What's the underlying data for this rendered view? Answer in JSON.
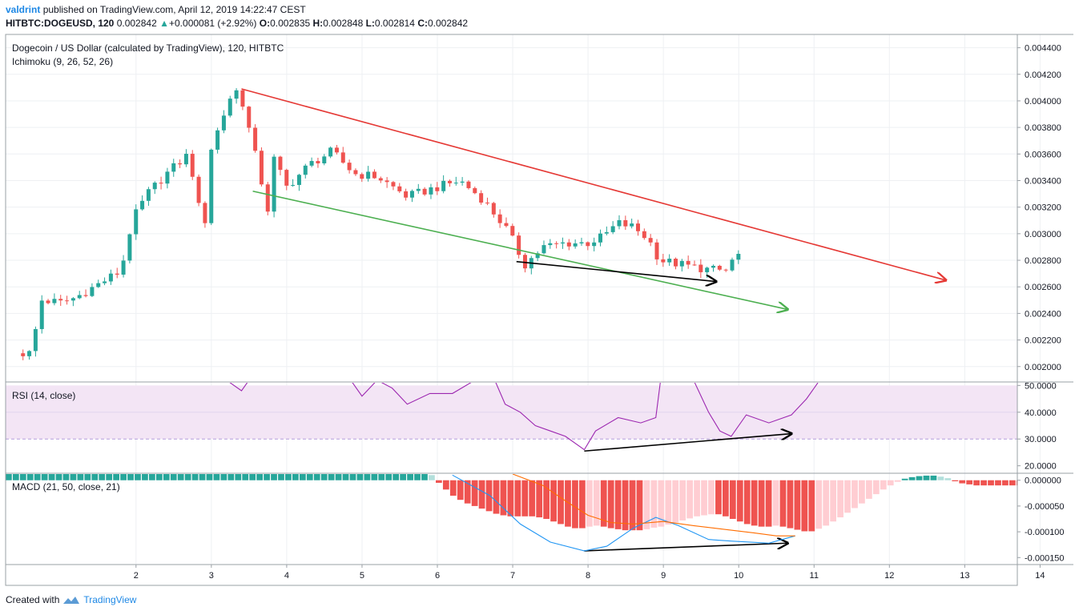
{
  "header": {
    "user": "valdrint",
    "publish_text": "published on TradingView.com, April 12, 2019 14:22:47 CEST",
    "symbol": "HITBTC:DOGEUSD, 120",
    "last": "0.002842",
    "change": "+0.000081 (+2.92%)",
    "o_label": "O:",
    "open": "0.002835",
    "h_label": "H:",
    "high": "0.002848",
    "l_label": "L:",
    "low": "0.002814",
    "c_label": "C:",
    "close": "0.002842"
  },
  "main_legend": {
    "title": "Dogecoin / US Dollar (calculated by TradingView), 120, HITBTC",
    "indicator": "Ichimoku (9, 26, 52, 26)"
  },
  "rsi_legend": "RSI (14, close)",
  "macd_legend": "MACD (21, 50, close, 21)",
  "footer": {
    "created": "Created with",
    "brand": "TradingView"
  },
  "colors": {
    "up": "#26a69a",
    "down": "#ef5350",
    "resistance": "#e53935",
    "support": "#4caf50",
    "divergence": "#000000",
    "rsi_line": "#9c27b0",
    "rsi_band": "#f3e5f5",
    "macd_line": "#2196f3",
    "signal_line": "#ff6d00",
    "hist_up_strong": "#26a69a",
    "hist_up_weak": "#b2dfdb",
    "hist_down_strong": "#ef5350",
    "hist_down_weak": "#ffcdd2"
  },
  "chart_data": {
    "type": "candlestick",
    "x_ticks": [
      "2",
      "3",
      "4",
      "5",
      "6",
      "7",
      "8",
      "9",
      "10",
      "11",
      "12",
      "13",
      "14"
    ],
    "price_axis": {
      "ticks": [
        "0.004400",
        "0.004200",
        "0.004000",
        "0.003800",
        "0.003600",
        "0.003400",
        "0.003200",
        "0.003000",
        "0.002800",
        "0.002600",
        "0.002400",
        "0.002200",
        "0.002000"
      ],
      "range": [
        0.00189,
        0.0045
      ]
    },
    "price_path": [
      [
        0.5,
        0.0021
      ],
      [
        0.6,
        0.0021
      ],
      [
        0.75,
        0.0025
      ],
      [
        1.0,
        0.00248
      ],
      [
        1.2,
        0.00252
      ],
      [
        1.5,
        0.00262
      ],
      [
        1.8,
        0.00272
      ],
      [
        1.95,
        0.0031
      ],
      [
        2.15,
        0.0033
      ],
      [
        2.4,
        0.00345
      ],
      [
        2.7,
        0.0036
      ],
      [
        2.9,
        0.003
      ],
      [
        3.0,
        0.00365
      ],
      [
        3.2,
        0.00395
      ],
      [
        3.3,
        0.0041
      ],
      [
        3.4,
        0.00402
      ],
      [
        3.6,
        0.00355
      ],
      [
        3.75,
        0.00318
      ],
      [
        3.8,
        0.0036
      ],
      [
        4.0,
        0.00335
      ],
      [
        4.3,
        0.00352
      ],
      [
        4.6,
        0.00362
      ],
      [
        4.9,
        0.00345
      ],
      [
        5.2,
        0.00343
      ],
      [
        5.6,
        0.00328
      ],
      [
        6.0,
        0.00335
      ],
      [
        6.3,
        0.0034
      ],
      [
        6.6,
        0.00326
      ],
      [
        6.9,
        0.00305
      ],
      [
        7.05,
        0.0029
      ],
      [
        7.15,
        0.00276
      ],
      [
        7.4,
        0.0029
      ],
      [
        7.7,
        0.00293
      ],
      [
        8.0,
        0.00293
      ],
      [
        8.2,
        0.00298
      ],
      [
        8.4,
        0.00308
      ],
      [
        8.6,
        0.00305
      ],
      [
        8.8,
        0.00296
      ],
      [
        8.95,
        0.0028
      ],
      [
        9.3,
        0.00276
      ],
      [
        9.6,
        0.00273
      ],
      [
        9.85,
        0.00272
      ],
      [
        9.95,
        0.00284
      ]
    ],
    "resistance_line": {
      "from": [
        3.4,
        0.00409
      ],
      "to": [
        12.75,
        0.00265
      ]
    },
    "support_line": {
      "from": [
        3.55,
        0.00332
      ],
      "to": [
        10.65,
        0.00243
      ]
    },
    "price_divergence_line": {
      "from": [
        7.05,
        0.00279
      ],
      "to": [
        9.7,
        0.00264
      ]
    },
    "rsi": {
      "ticks": [
        "50.0000",
        "40.0000",
        "30.0000",
        "20.0000"
      ],
      "range": [
        17.5,
        51
      ],
      "band": [
        30,
        50
      ],
      "path": [
        [
          0.5,
          53
        ],
        [
          3.0,
          56
        ],
        [
          3.4,
          48
        ],
        [
          3.6,
          56
        ],
        [
          4.0,
          55
        ],
        [
          4.4,
          54
        ],
        [
          4.6,
          52
        ],
        [
          4.8,
          54
        ],
        [
          5.0,
          46
        ],
        [
          5.2,
          52
        ],
        [
          5.4,
          49
        ],
        [
          5.6,
          43
        ],
        [
          5.9,
          47
        ],
        [
          6.2,
          47
        ],
        [
          6.5,
          52
        ],
        [
          6.7,
          56
        ],
        [
          6.9,
          43
        ],
        [
          7.1,
          40
        ],
        [
          7.3,
          35
        ],
        [
          7.5,
          33
        ],
        [
          7.7,
          31
        ],
        [
          7.95,
          26
        ],
        [
          8.1,
          33
        ],
        [
          8.4,
          38
        ],
        [
          8.7,
          36
        ],
        [
          8.9,
          38
        ],
        [
          9.0,
          60
        ],
        [
          9.2,
          58
        ],
        [
          9.4,
          52
        ],
        [
          9.6,
          40
        ],
        [
          9.75,
          33
        ],
        [
          9.9,
          31
        ],
        [
          10.1,
          39
        ],
        [
          10.4,
          36
        ],
        [
          10.7,
          39
        ],
        [
          10.9,
          45
        ],
        [
          11.05,
          51
        ]
      ],
      "divergence_line": {
        "from": [
          7.95,
          25.5
        ],
        "to": [
          10.7,
          32
        ]
      }
    },
    "macd": {
      "ticks": [
        "0.000000",
        "-0.000050",
        "-0.000100",
        "-0.000150"
      ],
      "range": [
        -0.000162,
        1.2e-05
      ],
      "histogram": [
        2e-05,
        2e-05,
        2e-05,
        2e-05,
        2e-05,
        2e-05,
        2e-05,
        2e-05,
        2e-05,
        2e-05,
        2e-05,
        2e-05,
        2e-05,
        2e-05,
        2e-05,
        2e-05,
        2e-05,
        2e-05,
        2e-05,
        2e-05,
        2e-05,
        2e-05,
        2e-05,
        2e-05,
        2e-05,
        2e-05,
        2e-05,
        2e-05,
        2e-05,
        2e-05,
        2e-05,
        2e-05,
        2e-05,
        2e-05,
        2e-05,
        2e-05,
        2e-05,
        2e-05,
        2e-05,
        2e-05,
        2e-05,
        2e-05,
        2e-05,
        2e-05,
        2e-05,
        2e-05,
        2e-05,
        2e-05,
        2e-05,
        2e-05,
        2e-05,
        2e-05,
        2e-05,
        2e-05,
        2e-05,
        2e-05,
        2e-05,
        2e-05,
        2e-05,
        1e-05,
        -5e-06,
        -1.8e-05,
        -3e-05,
        -3.8e-05,
        -4.5e-05,
        -5e-05,
        -5.5e-05,
        -6e-05,
        -6.5e-05,
        -6.8e-05,
        -7e-05,
        -7e-05,
        -7e-05,
        -7e-05,
        -7.2e-05,
        -7.5e-05,
        -8e-05,
        -8.5e-05,
        -9e-05,
        -9.3e-05,
        -9.3e-05,
        -9e-05,
        -8.8e-05,
        -9e-05,
        -9.3e-05,
        -9.5e-05,
        -9.7e-05,
        -9.7e-05,
        -9.7e-05,
        -9.5e-05,
        -9.2e-05,
        -9e-05,
        -8.6e-05,
        -8.2e-05,
        -7.8e-05,
        -7.4e-05,
        -7e-05,
        -6.8e-05,
        -6.6e-05,
        -6.6e-05,
        -7e-05,
        -7.5e-05,
        -8e-05,
        -8.5e-05,
        -8.8e-05,
        -9e-05,
        -9e-05,
        -8.8e-05,
        -9e-05,
        -9.3e-05,
        -9.6e-05,
        -9.9e-05,
        -9.9e-05,
        -9.4e-05,
        -8.8e-05,
        -8e-05,
        -7.2e-05,
        -6.3e-05,
        -5.4e-05,
        -4.5e-05,
        -3.6e-05,
        -2.7e-05,
        -1.8e-05,
        -1e-05,
        -3e-06,
        3e-06,
        6e-06,
        8e-06,
        9e-06,
        9e-06,
        7e-06,
        4e-06,
        -2e-06,
        -6e-06,
        -8e-06,
        -1e-05,
        -1e-05,
        -1e-05,
        -1e-05,
        -1e-05,
        -1e-05,
        -1e-05,
        -1e-05,
        -1e-05,
        -9e-06,
        -8e-06,
        -7e-06,
        -6e-06,
        -5e-06,
        -4e-06,
        -3e-06,
        -2e-06,
        -1e-06,
        0.0,
        0.0,
        1e-06
      ],
      "macd_line": [
        [
          6.2,
          1e-05
        ],
        [
          6.7,
          -3e-05
        ],
        [
          7.1,
          -8.5e-05
        ],
        [
          7.5,
          -0.00012
        ],
        [
          7.95,
          -0.000137
        ],
        [
          8.25,
          -0.000128
        ],
        [
          8.6,
          -9.3e-05
        ],
        [
          8.9,
          -7.2e-05
        ],
        [
          9.2,
          -8.8e-05
        ],
        [
          9.6,
          -0.000115
        ],
        [
          9.9,
          -0.000118
        ],
        [
          10.4,
          -0.000122
        ],
        [
          10.75,
          -0.000108
        ]
      ],
      "signal_line": [
        [
          7.0,
          1.2e-05
        ],
        [
          7.4,
          -1e-05
        ],
        [
          7.7,
          -4e-05
        ],
        [
          8.0,
          -6.8e-05
        ],
        [
          8.3,
          -8.2e-05
        ],
        [
          8.6,
          -8.5e-05
        ],
        [
          9.0,
          -8e-05
        ],
        [
          9.4,
          -8.8e-05
        ],
        [
          9.8,
          -9.5e-05
        ],
        [
          10.2,
          -0.000102
        ],
        [
          10.5,
          -0.000108
        ],
        [
          10.75,
          -0.000108
        ]
      ],
      "divergence_line": {
        "from": [
          7.95,
          -0.000137
        ],
        "to": [
          10.65,
          -0.000122
        ]
      }
    }
  }
}
